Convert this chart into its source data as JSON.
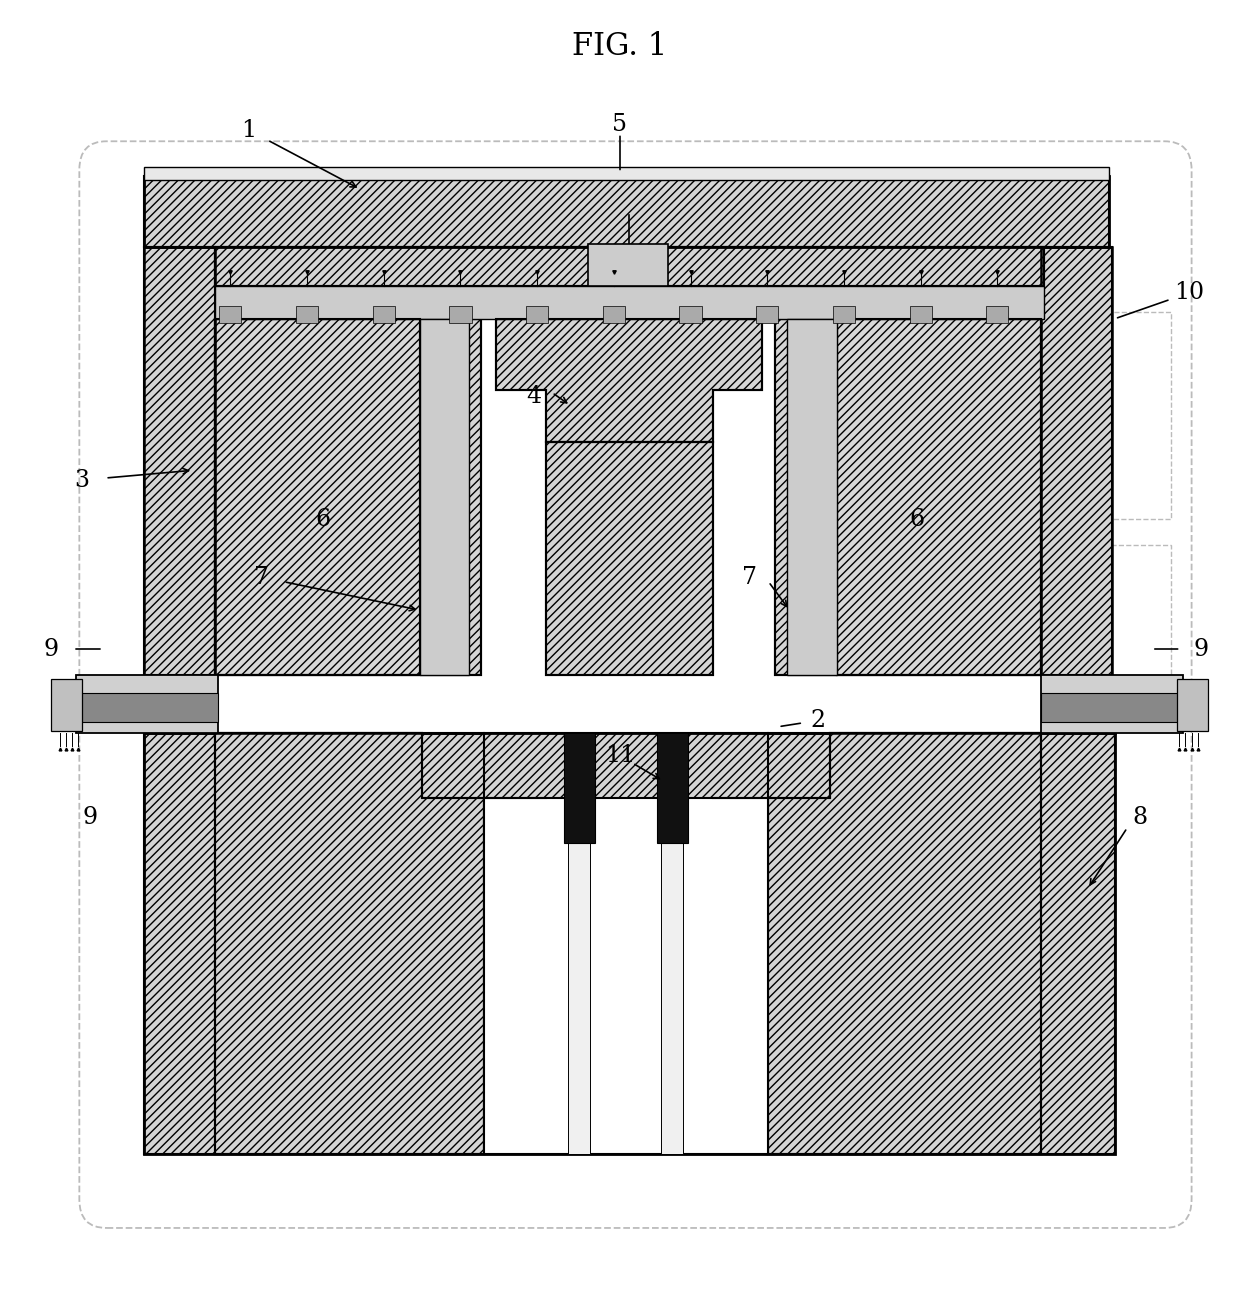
{
  "title": "FIG. 1",
  "bg": "#ffffff",
  "lc": "#000000",
  "hatch_fc": "#e8e8e8",
  "title_fontsize": 22,
  "label_fontsize": 17
}
